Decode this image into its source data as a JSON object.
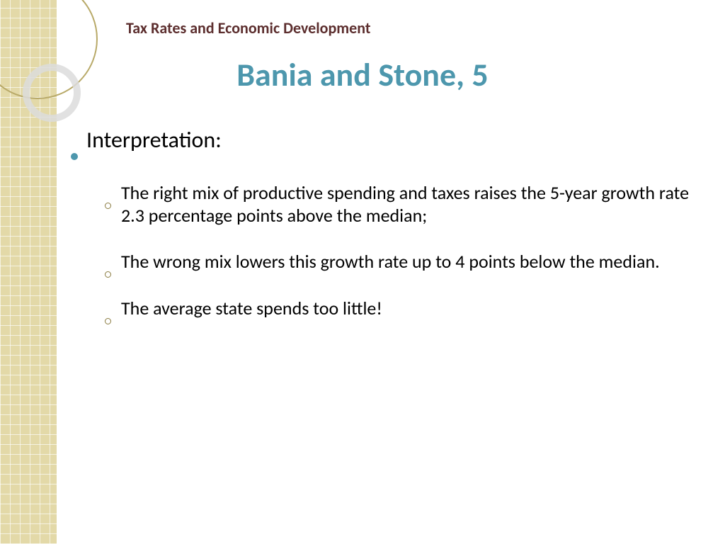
{
  "header": "Tax Rates and Economic Development",
  "title": "Bania and Stone, 5",
  "bullets": {
    "main": "Interpretation:",
    "subs": [
      "The right mix of productive spending and taxes raises the 5-year growth rate 2.3 percentage points above the median;",
      "The wrong mix lowers this growth rate up to 4 points below the median.",
      "The average state spends too little!"
    ]
  },
  "colors": {
    "header": "#5c2e2e",
    "title": "#4d97ad",
    "sidebar": "#e3d9a8",
    "accent": "#4d97ad",
    "ring": "#8a7b3f"
  }
}
